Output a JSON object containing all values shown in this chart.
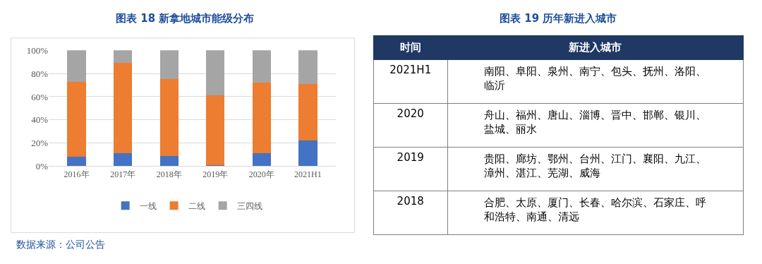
{
  "chart_data": [
    {
      "type": "bar",
      "title": "图表 18 新拿地城市能级分布",
      "stacked": true,
      "categories": [
        "2016年",
        "2017年",
        "2018年",
        "2019年",
        "2020年",
        "2021H1"
      ],
      "series": [
        {
          "name": "一线",
          "color": "#4472c4",
          "values": [
            8,
            11,
            9,
            1,
            11,
            22
          ]
        },
        {
          "name": "二线",
          "color": "#ed7d31",
          "values": [
            65,
            78,
            66,
            60,
            61,
            49
          ]
        },
        {
          "name": "三四线",
          "color": "#a5a5a5",
          "values": [
            27,
            11,
            25,
            39,
            28,
            29
          ]
        }
      ],
      "ylim": [
        0,
        100
      ],
      "yticks": [
        {
          "value": 0,
          "label": "0%"
        },
        {
          "value": 20,
          "label": "20%"
        },
        {
          "value": 40,
          "label": "40%"
        },
        {
          "value": 60,
          "label": "60%"
        },
        {
          "value": 80,
          "label": "80%"
        },
        {
          "value": 100,
          "label": "100%"
        }
      ],
      "grid": "y",
      "legend": "bottom",
      "annotations": [
        "数据来源：公司公告"
      ]
    },
    {
      "type": "other",
      "title": "图表 19 历年新进入城市",
      "categories": [
        "时间",
        "新进入城市"
      ],
      "y_categories": [
        "2021H1",
        "2020",
        "2019",
        "2018"
      ],
      "cell_labels": [
        [
          "南阳、阜阳、泉州、南宁、包头、抚州、洛阳、临沂"
        ],
        [
          "舟山、福州、唐山、淄博、晋中、邯郸、银川、盐城、丽水"
        ],
        [
          "贵阳、廊坊、鄂州、台州、江门、襄阳、九江、漳州、湛江、芜湖、威海"
        ],
        [
          "合肥、太原、厦门、长春、哈尔滨、石家庄、呼和浩特、南通、清远"
        ]
      ]
    }
  ]
}
